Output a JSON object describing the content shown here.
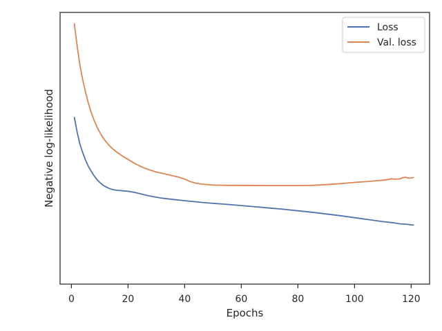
{
  "chart_data": {
    "type": "line",
    "title": "",
    "xlabel": "Epochs",
    "ylabel": "Negative log-likelihood",
    "xlim": [
      -4,
      126.5
    ],
    "ylim": [
      0,
      1
    ],
    "x_ticks": [
      0,
      20,
      40,
      60,
      80,
      100,
      120
    ],
    "y_tick_labels_shown": false,
    "grid": false,
    "legend_position": "top-right",
    "series": [
      {
        "name": "Loss",
        "color": "#4c72b0",
        "points": [
          [
            1,
            0.61
          ],
          [
            2,
            0.55
          ],
          [
            3,
            0.5
          ],
          [
            4,
            0.465
          ],
          [
            5,
            0.435
          ],
          [
            6,
            0.41
          ],
          [
            7,
            0.39
          ],
          [
            8,
            0.372
          ],
          [
            9,
            0.357
          ],
          [
            10,
            0.345
          ],
          [
            11,
            0.335
          ],
          [
            12,
            0.328
          ],
          [
            13,
            0.322
          ],
          [
            14,
            0.318
          ],
          [
            15,
            0.315
          ],
          [
            16,
            0.313
          ],
          [
            18,
            0.311
          ],
          [
            20,
            0.309
          ],
          [
            22,
            0.305
          ],
          [
            24,
            0.3
          ],
          [
            26,
            0.294
          ],
          [
            28,
            0.289
          ],
          [
            30,
            0.285
          ],
          [
            32,
            0.281
          ],
          [
            35,
            0.277
          ],
          [
            40,
            0.271
          ],
          [
            45,
            0.265
          ],
          [
            50,
            0.26
          ],
          [
            55,
            0.256
          ],
          [
            60,
            0.251
          ],
          [
            65,
            0.246
          ],
          [
            70,
            0.241
          ],
          [
            75,
            0.236
          ],
          [
            80,
            0.23
          ],
          [
            85,
            0.224
          ],
          [
            90,
            0.217
          ],
          [
            95,
            0.21
          ],
          [
            100,
            0.202
          ],
          [
            105,
            0.194
          ],
          [
            110,
            0.186
          ],
          [
            114,
            0.181
          ],
          [
            116,
            0.177
          ],
          [
            118,
            0.176
          ],
          [
            120,
            0.173
          ],
          [
            121,
            0.172
          ]
        ]
      },
      {
        "name": "Val. loss",
        "color": "#dd8452",
        "points": [
          [
            1,
            0.99
          ],
          [
            2,
            0.9
          ],
          [
            3,
            0.82
          ],
          [
            4,
            0.76
          ],
          [
            5,
            0.71
          ],
          [
            6,
            0.665
          ],
          [
            7,
            0.628
          ],
          [
            8,
            0.597
          ],
          [
            9,
            0.57
          ],
          [
            10,
            0.548
          ],
          [
            11,
            0.529
          ],
          [
            12,
            0.513
          ],
          [
            13,
            0.499
          ],
          [
            14,
            0.487
          ],
          [
            15,
            0.477
          ],
          [
            16,
            0.468
          ],
          [
            18,
            0.452
          ],
          [
            20,
            0.438
          ],
          [
            22,
            0.424
          ],
          [
            24,
            0.412
          ],
          [
            26,
            0.402
          ],
          [
            28,
            0.394
          ],
          [
            30,
            0.387
          ],
          [
            32,
            0.382
          ],
          [
            35,
            0.374
          ],
          [
            38,
            0.366
          ],
          [
            40,
            0.358
          ],
          [
            42,
            0.348
          ],
          [
            44,
            0.342
          ],
          [
            46,
            0.338
          ],
          [
            50,
            0.334
          ],
          [
            55,
            0.333
          ],
          [
            60,
            0.333
          ],
          [
            70,
            0.332
          ],
          [
            80,
            0.332
          ],
          [
            85,
            0.333
          ],
          [
            90,
            0.336
          ],
          [
            95,
            0.34
          ],
          [
            100,
            0.345
          ],
          [
            105,
            0.349
          ],
          [
            110,
            0.354
          ],
          [
            112,
            0.357
          ],
          [
            113,
            0.36
          ],
          [
            114,
            0.358
          ],
          [
            116,
            0.359
          ],
          [
            117,
            0.364
          ],
          [
            118,
            0.366
          ],
          [
            119,
            0.362
          ],
          [
            120,
            0.363
          ],
          [
            121,
            0.365
          ]
        ]
      }
    ]
  }
}
